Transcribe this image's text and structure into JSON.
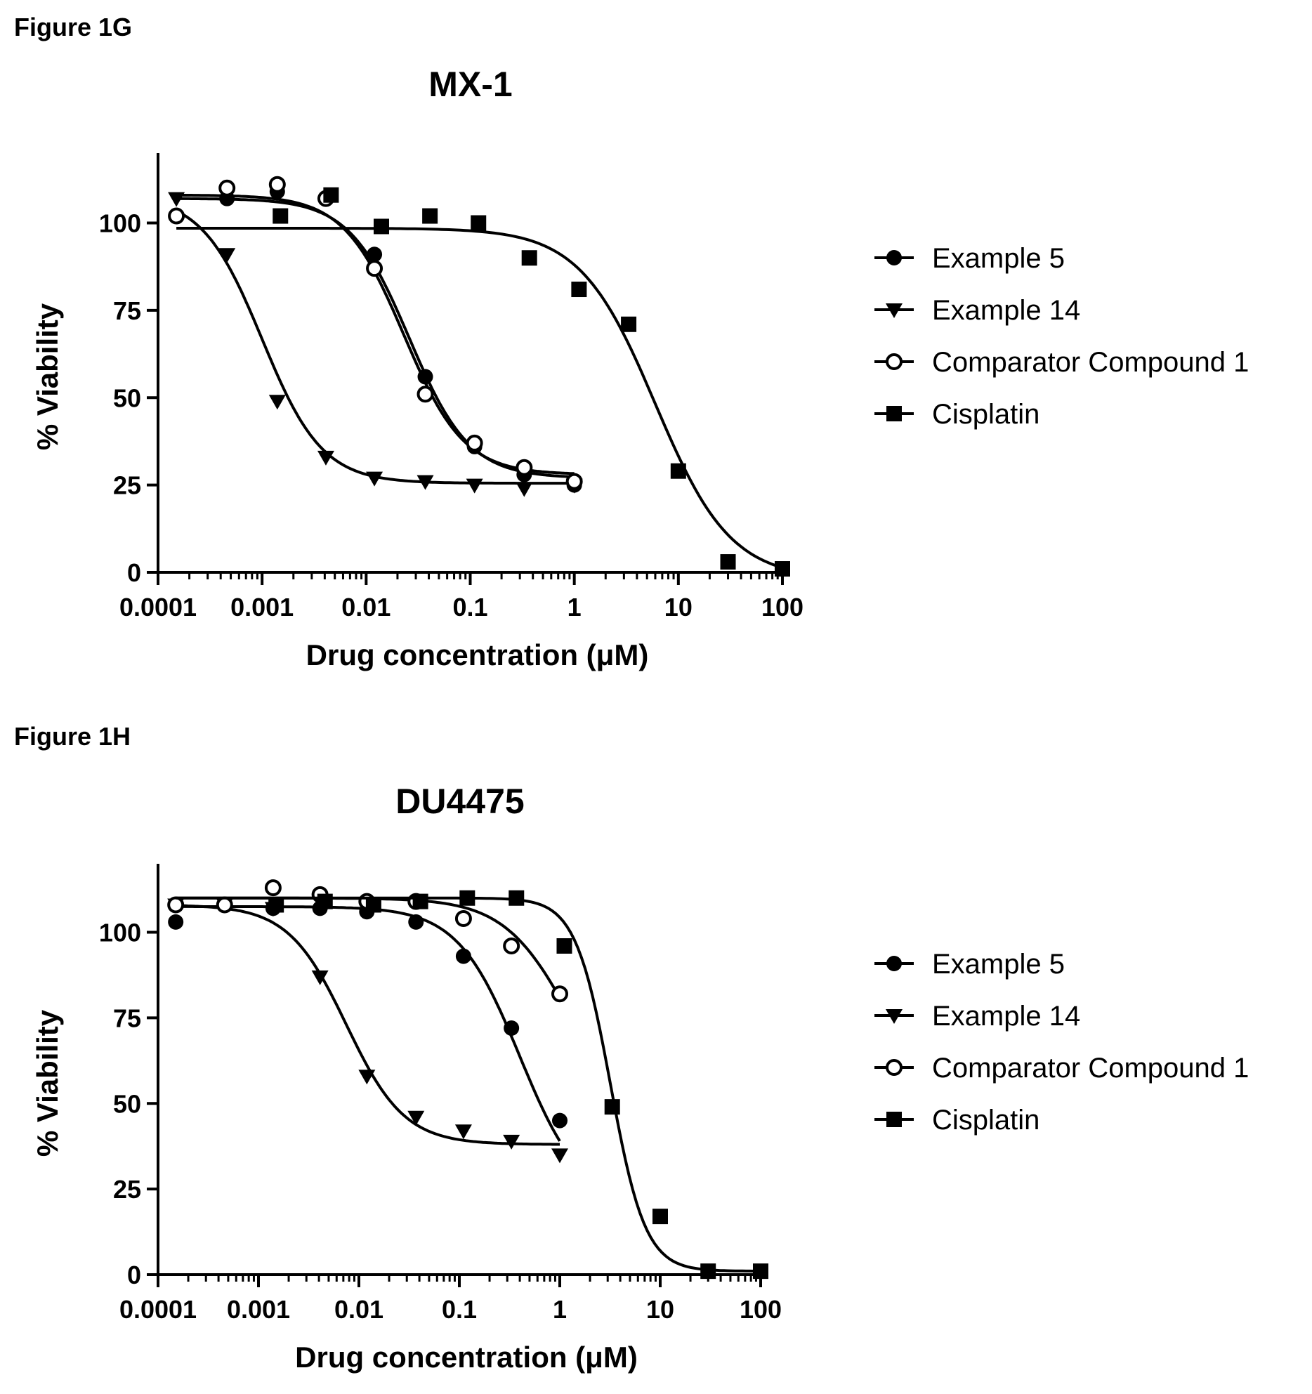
{
  "figures": [
    {
      "label": "Figure 1G"
    },
    {
      "label": "Figure 1H"
    }
  ],
  "chart_data": [
    {
      "type": "scatter",
      "title": "MX-1",
      "xlabel": "Drug concentration (μM)",
      "ylabel": "% Viability",
      "xscale": "log",
      "xlim": [
        0.0001,
        100
      ],
      "ylim": [
        0,
        120
      ],
      "xticks": [
        "0.0001",
        "0.001",
        "0.01",
        "0.1",
        "1",
        "10",
        "100"
      ],
      "yticks": [
        "0",
        "25",
        "50",
        "75",
        "100"
      ],
      "legend_position": "right",
      "series": [
        {
          "name": "Example 5",
          "marker": "circle-filled",
          "x": [
            0.00015,
            0.00046,
            0.0014,
            0.0041,
            0.012,
            0.037,
            0.11,
            0.33,
            1.0
          ],
          "y": [
            102,
            107,
            109,
            107,
            91,
            56,
            36,
            28,
            25
          ],
          "fit": {
            "top": 107,
            "bottom": 27,
            "ec50": 0.026,
            "hill": 1.5,
            "xmax": 1.0
          }
        },
        {
          "name": "Example 14",
          "marker": "triangle-down-filled",
          "x": [
            0.00015,
            0.00046,
            0.0014,
            0.0041,
            0.012,
            0.037,
            0.11,
            0.33,
            1.0
          ],
          "y": [
            107,
            91,
            49,
            33,
            27,
            26,
            25,
            24,
            25
          ],
          "fit": {
            "top": 108,
            "bottom": 25.5,
            "ec50": 0.001,
            "hill": 1.5,
            "xmax": 1.0
          }
        },
        {
          "name": "Comparator Compound 1",
          "marker": "circle-open",
          "x": [
            0.00015,
            0.00046,
            0.0014,
            0.0041,
            0.012,
            0.037,
            0.11,
            0.33,
            1.0
          ],
          "y": [
            102,
            110,
            111,
            107,
            87,
            51,
            37,
            30,
            26
          ],
          "fit": {
            "top": 108,
            "bottom": 28,
            "ec50": 0.023,
            "hill": 1.5,
            "xmax": 1.0
          }
        },
        {
          "name": "Cisplatin",
          "marker": "square-filled",
          "x": [
            0.0015,
            0.0046,
            0.014,
            0.041,
            0.12,
            0.37,
            1.11,
            3.33,
            10,
            30,
            100
          ],
          "y": [
            102,
            108,
            99,
            102,
            100,
            90,
            81,
            71,
            29,
            3,
            1
          ],
          "fit": {
            "top": 98.5,
            "bottom": -2,
            "ec50": 6.0,
            "hill": 1.2,
            "xmin": 0.00015,
            "xmax": 100
          }
        }
      ]
    },
    {
      "type": "scatter",
      "title": "DU4475",
      "xlabel": "Drug concentration (μM)",
      "ylabel": "% Viability",
      "xscale": "log",
      "xlim": [
        0.0001,
        100
      ],
      "ylim": [
        0,
        120
      ],
      "xticks": [
        "0.0001",
        "0.001",
        "0.01",
        "0.1",
        "1",
        "10",
        "100"
      ],
      "yticks": [
        "0",
        "25",
        "50",
        "75",
        "100"
      ],
      "legend_position": "right",
      "series": [
        {
          "name": "Example 5",
          "marker": "circle-filled",
          "x": [
            0.00015,
            0.00046,
            0.0014,
            0.0041,
            0.012,
            0.037,
            0.11,
            0.33,
            1.0
          ],
          "y": [
            103,
            108,
            107,
            107,
            106,
            103,
            93,
            72,
            45
          ],
          "fit": {
            "top": 107.5,
            "bottom": 20,
            "ec50": 0.4,
            "hill": 1.4,
            "xmax": 1.0
          }
        },
        {
          "name": "Example 14",
          "marker": "triangle-down-filled",
          "x": [
            0.00015,
            0.00046,
            0.0014,
            0.0041,
            0.012,
            0.037,
            0.11,
            0.33,
            1.0
          ],
          "y": [
            108,
            108,
            107,
            87,
            58,
            46,
            42,
            39,
            35
          ],
          "fit": {
            "top": 108,
            "bottom": 38,
            "ec50": 0.0075,
            "hill": 1.5,
            "xmax": 1.0
          }
        },
        {
          "name": "Comparator Compound 1",
          "marker": "circle-open",
          "x": [
            0.00015,
            0.00046,
            0.0014,
            0.0041,
            0.012,
            0.037,
            0.11,
            0.33,
            1.0
          ],
          "y": [
            108,
            108,
            113,
            111,
            109,
            109,
            104,
            96,
            82
          ],
          "fit": {
            "top": 110,
            "bottom": 40,
            "ec50": 1.3,
            "hill": 1.3,
            "xmax": 1.0
          }
        },
        {
          "name": "Cisplatin",
          "marker": "square-filled",
          "x": [
            0.0015,
            0.0046,
            0.014,
            0.041,
            0.12,
            0.37,
            1.11,
            3.33,
            10,
            30,
            100
          ],
          "y": [
            108,
            109,
            108,
            109,
            110,
            110,
            96,
            49,
            17,
            1,
            1
          ],
          "fit": {
            "top": 110,
            "bottom": 1,
            "ec50": 3.2,
            "hill": 2.5,
            "xmin": 0.00015,
            "xmax": 100
          }
        }
      ]
    }
  ]
}
